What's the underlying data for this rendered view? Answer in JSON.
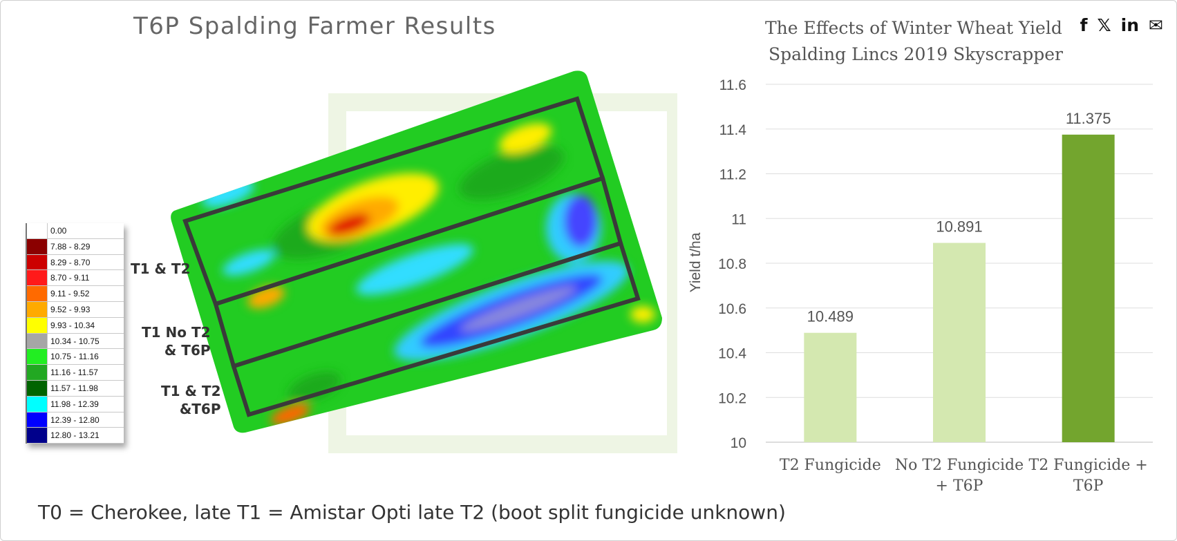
{
  "page": {
    "title": "T6P Spalding Farmer Results",
    "footnote": "T0 = Cherokee, late T1 = Amistar Opti late T2 (boot split fungicide unknown)"
  },
  "share": {
    "facebook": "f",
    "x": "𝕏",
    "linkedin": "in",
    "email": "✉"
  },
  "map": {
    "zones": [
      {
        "label_line1": "T1 & T2",
        "label_line2": ""
      },
      {
        "label_line1": "T1 No T2",
        "label_line2": "& T6P"
      },
      {
        "label_line1": "T1 & T2",
        "label_line2": "&T6P"
      }
    ],
    "legend": [
      {
        "range": "0.00",
        "color": "#ffffff"
      },
      {
        "range": "7.88 - 8.29",
        "color": "#8b0000"
      },
      {
        "range": "8.29 - 8.70",
        "color": "#cc0000"
      },
      {
        "range": "8.70 - 9.11",
        "color": "#ff1a1a"
      },
      {
        "range": "9.11 - 9.52",
        "color": "#ff6a00"
      },
      {
        "range": "9.52 - 9.93",
        "color": "#ffaa00"
      },
      {
        "range": "9.93 - 10.34",
        "color": "#ffff00"
      },
      {
        "range": "10.34 - 10.75",
        "color": "#a6a6a6"
      },
      {
        "range": "10.75 - 11.16",
        "color": "#22ee22"
      },
      {
        "range": "11.16 - 11.57",
        "color": "#22a822"
      },
      {
        "range": "11.57 - 11.98",
        "color": "#006400"
      },
      {
        "range": "11.98 - 12.39",
        "color": "#00ffff"
      },
      {
        "range": "12.39 - 12.80",
        "color": "#0000ff"
      },
      {
        "range": "12.80 - 13.21",
        "color": "#00008b"
      }
    ]
  },
  "chart_data": {
    "type": "bar",
    "title": "The Effects of Winter Wheat Yield",
    "subtitle": "Spalding Lincs 2019 Skyscrapper",
    "ylabel": "Yield t/ha",
    "xlabel": "",
    "categories": [
      "T2 Fungicide",
      "No T2 Fungicide + T6P",
      "T2 Fungicide + T6P"
    ],
    "category_lines": [
      [
        "T2 Fungicide"
      ],
      [
        "No T2 Fungicide",
        "+ T6P"
      ],
      [
        "T2 Fungicide +",
        "T6P"
      ]
    ],
    "values": [
      10.489,
      10.891,
      11.375
    ],
    "value_labels": [
      "10.489",
      "10.891",
      "11.375"
    ],
    "colors": [
      "#d4e8b0",
      "#d4e8b0",
      "#73a52e"
    ],
    "ylim": [
      10,
      11.6
    ],
    "yticks": [
      10,
      10.2,
      10.4,
      10.6,
      10.8,
      11,
      11.2,
      11.4,
      11.6
    ],
    "ytick_labels": [
      "10",
      "10.2",
      "10.4",
      "10.6",
      "10.8",
      "11",
      "11.2",
      "11.4",
      "11.6"
    ],
    "grid": true,
    "legend": false
  }
}
